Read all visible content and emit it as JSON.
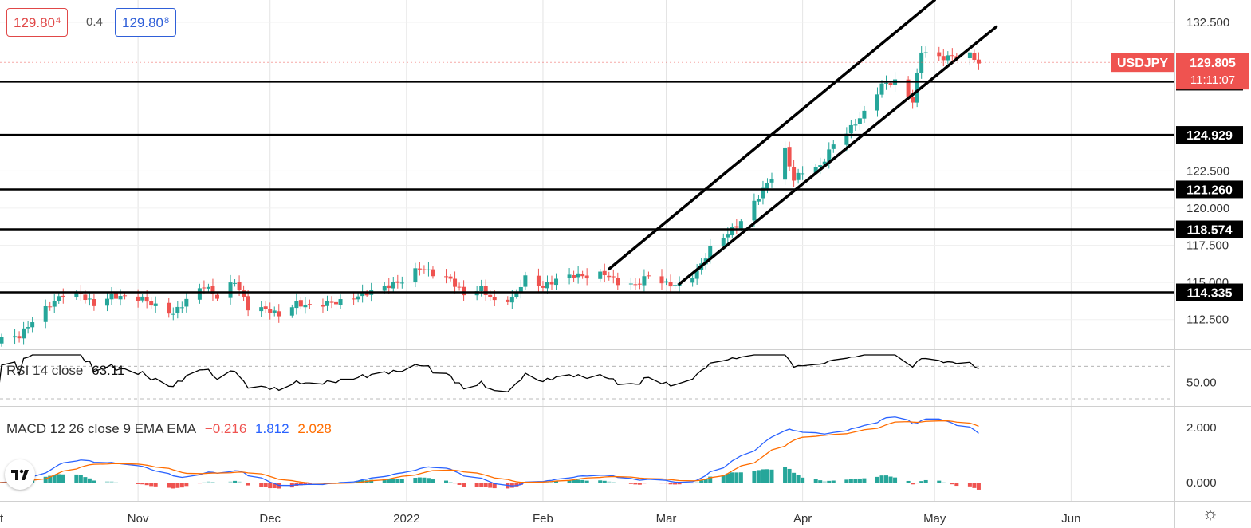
{
  "header": {
    "bid": "129.804",
    "bid_main": "129.80",
    "bid_pip": "4",
    "spread": "0.4",
    "ask_main": "129.80",
    "ask_pip": "8"
  },
  "colors": {
    "up": "#26a69a",
    "down": "#ef5350",
    "rsi_line": "#000000",
    "macd_line": "#2962ff",
    "signal_line": "#ff6d00",
    "tag": "#ef5350"
  },
  "icons": [
    "tradingview-logo-icon",
    "gear-icon"
  ],
  "chart_data": [
    {
      "type": "candlestick",
      "symbol": "USDJPY",
      "last_price": "129.805",
      "countdown": "11:11:07",
      "y_ticks": [
        "132.500",
        "122.500",
        "120.000",
        "117.500",
        "115.000",
        "112.500"
      ],
      "ylim": [
        110.5,
        134.0
      ],
      "x_labels": [
        "Nov",
        "Dec",
        "2022",
        "Feb",
        "Mar",
        "Apr",
        "May",
        "Jun"
      ],
      "horizontal_levels": [
        "128.504",
        "124.929",
        "121.260",
        "118.574",
        "114.335"
      ],
      "trend_channel": {
        "upper": [
          [
            "2022-02-16",
            115.9
          ],
          [
            "2022-05-01",
            134.0
          ]
        ],
        "lower": [
          [
            "2022-03-04",
            114.9
          ],
          [
            "2022-05-15",
            132.2
          ]
        ]
      },
      "closes": [
        [
          "2021-10-01",
          111.2
        ],
        [
          "2021-10-05",
          111.4
        ],
        [
          "2021-10-08",
          112.4
        ],
        [
          "2021-10-12",
          113.5
        ],
        [
          "2021-10-15",
          114.2
        ],
        [
          "2021-10-19",
          114.2
        ],
        [
          "2021-10-22",
          113.5
        ],
        [
          "2021-10-26",
          114.1
        ],
        [
          "2021-10-29",
          114.0
        ],
        [
          "2021-11-02",
          113.9
        ],
        [
          "2021-11-05",
          113.4
        ],
        [
          "2021-11-09",
          112.9
        ],
        [
          "2021-11-12",
          113.8
        ],
        [
          "2021-11-16",
          114.8
        ],
        [
          "2021-11-19",
          114.0
        ],
        [
          "2021-11-23",
          115.1
        ],
        [
          "2021-11-26",
          113.3
        ],
        [
          "2021-11-30",
          113.2
        ],
        [
          "2021-12-03",
          112.8
        ],
        [
          "2021-12-07",
          113.6
        ],
        [
          "2021-12-10",
          113.4
        ],
        [
          "2021-12-14",
          113.6
        ],
        [
          "2021-12-17",
          113.7
        ],
        [
          "2021-12-21",
          114.1
        ],
        [
          "2021-12-24",
          114.4
        ],
        [
          "2021-12-28",
          114.8
        ],
        [
          "2021-12-31",
          115.1
        ],
        [
          "2022-01-04",
          116.0
        ],
        [
          "2022-01-07",
          115.6
        ],
        [
          "2022-01-11",
          115.2
        ],
        [
          "2022-01-14",
          114.2
        ],
        [
          "2022-01-18",
          114.6
        ],
        [
          "2022-01-21",
          113.7
        ],
        [
          "2022-01-25",
          113.9
        ],
        [
          "2022-01-28",
          115.3
        ],
        [
          "2022-02-01",
          114.7
        ],
        [
          "2022-02-04",
          115.2
        ],
        [
          "2022-02-08",
          115.5
        ],
        [
          "2022-02-11",
          115.4
        ],
        [
          "2022-02-15",
          115.6
        ],
        [
          "2022-02-18",
          115.0
        ],
        [
          "2022-02-22",
          114.8
        ],
        [
          "2022-02-25",
          115.5
        ],
        [
          "2022-03-01",
          114.9
        ],
        [
          "2022-03-04",
          114.8
        ],
        [
          "2022-03-08",
          115.7
        ],
        [
          "2022-03-11",
          117.3
        ],
        [
          "2022-03-15",
          118.3
        ],
        [
          "2022-03-18",
          119.1
        ],
        [
          "2022-03-22",
          120.8
        ],
        [
          "2022-03-25",
          122.1
        ],
        [
          "2022-03-28",
          123.9
        ],
        [
          "2022-03-30",
          121.9
        ],
        [
          "2022-04-01",
          122.5
        ],
        [
          "2022-04-05",
          122.8
        ],
        [
          "2022-04-08",
          124.3
        ],
        [
          "2022-04-12",
          125.4
        ],
        [
          "2022-04-15",
          126.4
        ],
        [
          "2022-04-19",
          128.3
        ],
        [
          "2022-04-22",
          128.5
        ],
        [
          "2022-04-26",
          127.2
        ],
        [
          "2022-04-28",
          130.6
        ],
        [
          "2022-05-02",
          130.1
        ],
        [
          "2022-05-05",
          130.2
        ],
        [
          "2022-05-09",
          130.3
        ],
        [
          "2022-05-11",
          129.8
        ]
      ]
    },
    {
      "type": "line",
      "name": "RSI 14 close",
      "value": "63.11",
      "y_ticks": [
        "50.00"
      ],
      "guides": [
        70,
        30
      ]
    },
    {
      "type": "line",
      "name": "MACD 12 26 close 9 EMA EMA",
      "values": [
        "−0.216",
        "1.812",
        "2.028"
      ],
      "y_ticks": [
        "2.000",
        "0.000"
      ]
    }
  ]
}
